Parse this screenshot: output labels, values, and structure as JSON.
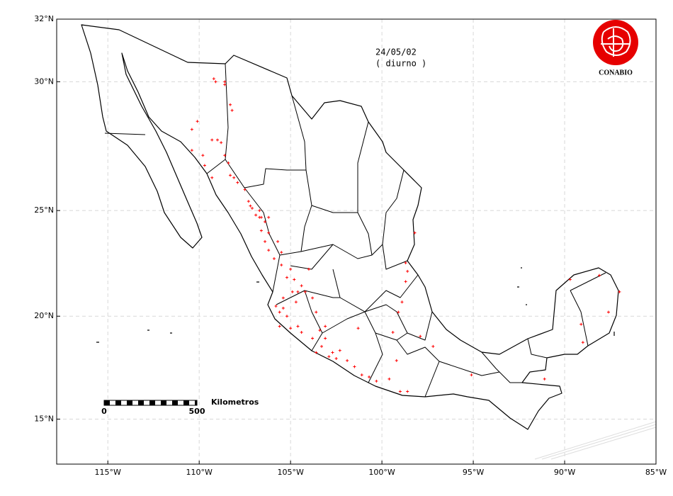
{
  "chart_data": {
    "type": "scatter",
    "title": "24/05/02",
    "subtitle": "( diurno )",
    "logo_text": "CONABIO",
    "scale_bar": {
      "start": 0,
      "end": 500,
      "unit": "Kilometros"
    },
    "color": "#ff0000",
    "grid": true,
    "xlim": [
      -117.8,
      -85
    ],
    "ylim": [
      13,
      32
    ],
    "xticks": [
      {
        "value": -115,
        "label": "115°W"
      },
      {
        "value": -110,
        "label": "110°W"
      },
      {
        "value": -105,
        "label": "105°W"
      },
      {
        "value": -100,
        "label": "100°W"
      },
      {
        "value": -95,
        "label": "95°W"
      },
      {
        "value": -90,
        "label": "90°W"
      },
      {
        "value": -85,
        "label": "85°W"
      }
    ],
    "yticks": [
      {
        "value": 15,
        "label": "15°N"
      },
      {
        "value": 20,
        "label": "20°N"
      },
      {
        "value": 25,
        "label": "25°N"
      },
      {
        "value": 30,
        "label": "30°N"
      },
      {
        "value": 32,
        "label": "32°N"
      }
    ],
    "x": [
      -109.2,
      -109.1,
      -108.6,
      -108.6,
      -108.2,
      -108.3,
      -110.4,
      -110.1,
      -109.3,
      -109.0,
      -108.8,
      -110.4,
      -109.8,
      -109.7,
      -109.3,
      -108.6,
      -108.4,
      -108.3,
      -108.1,
      -107.9,
      -107.5,
      -107.3,
      -107.1,
      -106.9,
      -106.7,
      -106.6,
      -106.4,
      -106.6,
      -106.2,
      -106.4,
      -106.2,
      -105.7,
      -105.5,
      -105.9,
      -105.5,
      -105.0,
      -105.2,
      -104.8,
      -104.9,
      -104.6,
      -105.4,
      -104.7,
      -105.6,
      -105.2,
      -105.6,
      -105.0,
      -104.4,
      -103.8,
      -103.4,
      -103.1,
      -103.3,
      -102.7,
      -102.9,
      -102.3,
      -101.9,
      -101.5,
      -101.1,
      -100.7,
      -100.3,
      -99.6,
      -99.0,
      -98.6,
      -99.2,
      -99.4,
      -99.1,
      -98.9,
      -98.7,
      -98.6,
      -98.7,
      -98.2,
      -104.2,
      -104.0,
      -103.6,
      -101.3,
      -89.7,
      -88.1,
      -89.1,
      -89.0,
      -95.1,
      -91.1,
      -97.2,
      -97.9,
      -87.0,
      -87.6,
      -107.2,
      -106.7,
      -106.2,
      -105.8,
      -105.4,
      -104.6,
      -103.6,
      -102.5,
      -103.1,
      -103.8,
      -104.4
    ],
    "values": [
      30.1,
      30.0,
      30.0,
      29.9,
      29.0,
      29.2,
      28.3,
      28.6,
      27.9,
      27.9,
      27.8,
      27.5,
      27.3,
      26.9,
      26.4,
      27.3,
      27.0,
      26.5,
      26.4,
      26.2,
      25.9,
      25.4,
      25.1,
      24.8,
      24.7,
      24.7,
      24.5,
      24.1,
      24.0,
      23.6,
      23.2,
      23.6,
      23.1,
      22.8,
      22.5,
      22.3,
      21.9,
      21.8,
      21.2,
      21.2,
      20.9,
      20.7,
      20.2,
      20.0,
      19.5,
      19.4,
      19.2,
      18.9,
      19.3,
      19.5,
      18.5,
      18.2,
      18.0,
      18.3,
      17.8,
      17.5,
      17.1,
      17.0,
      16.8,
      16.9,
      16.3,
      16.3,
      17.8,
      19.2,
      20.2,
      20.7,
      21.7,
      22.2,
      22.6,
      24.0,
      21.2,
      22.3,
      20.2,
      19.4,
      21.8,
      22.0,
      19.6,
      18.7,
      17.1,
      16.9,
      18.5,
      19.0,
      21.2,
      20.2,
      25.2,
      25.0,
      24.7,
      20.5,
      20.4,
      19.5,
      18.2,
      17.9,
      18.9,
      20.9,
      21.5
    ]
  }
}
